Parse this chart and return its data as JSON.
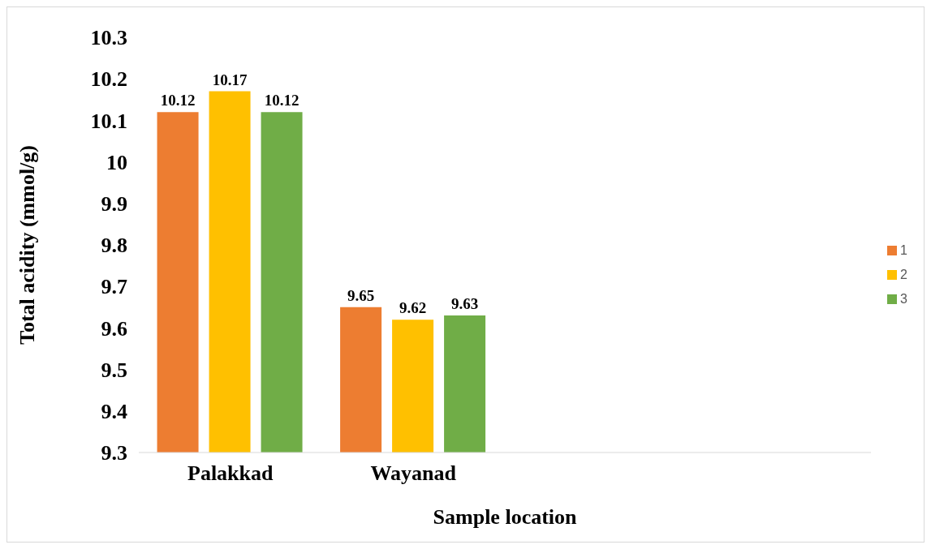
{
  "chart_data": {
    "type": "bar",
    "xlabel": "Sample location",
    "ylabel": "Total acidity (mmol/g)",
    "categories": [
      "Palakkad",
      "Wayanad",
      null,
      null
    ],
    "series": [
      {
        "name": "1",
        "color": "#ed7d31",
        "values": [
          10.12,
          9.65,
          null,
          null
        ]
      },
      {
        "name": "2",
        "color": "#ffc000",
        "values": [
          10.17,
          9.62,
          null,
          null
        ]
      },
      {
        "name": "3",
        "color": "#70ad47",
        "values": [
          10.12,
          9.63,
          null,
          null
        ]
      }
    ],
    "ylim": [
      9.3,
      10.3
    ],
    "yticks": [
      9.3,
      9.4,
      9.5,
      9.6,
      9.7,
      9.8,
      9.9,
      10,
      10.1,
      10.2,
      10.3
    ],
    "data_labels": true,
    "legend": "right"
  }
}
